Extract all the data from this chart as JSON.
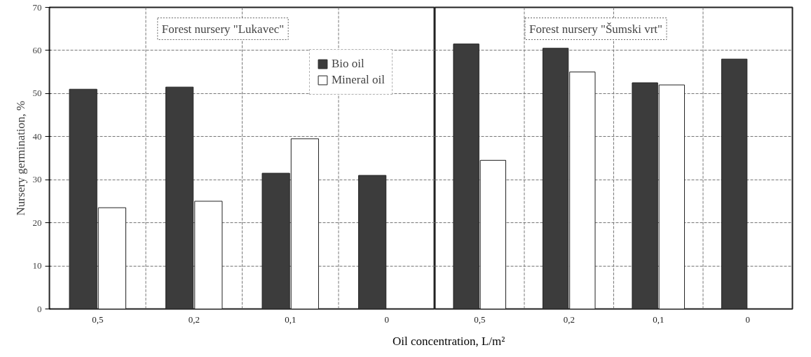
{
  "chart_data": [
    {
      "type": "bar",
      "title": "Forest nursery \"Lukavec\"",
      "ylabel": "Nursery germination, %",
      "xlabel": "Oil concentration, L/m²",
      "categories": [
        "0,5",
        "0,2",
        "0,1",
        "0"
      ],
      "series": [
        {
          "name": "Bio oil",
          "color": "#3c3c3c",
          "values": [
            51,
            51.5,
            31.5,
            31
          ]
        },
        {
          "name": "Mineral oil",
          "color": "#ffffff",
          "values": [
            23.5,
            25,
            39.5,
            null
          ]
        }
      ],
      "ylim": [
        0,
        70
      ],
      "yticks": [
        0,
        10,
        20,
        30,
        40,
        50,
        60,
        70
      ],
      "grid": true,
      "legend": "top right"
    },
    {
      "type": "bar",
      "title": "Forest nursery \"Šumski vrt\"",
      "categories": [
        "0,5",
        "0,2",
        "0,1",
        "0"
      ],
      "series": [
        {
          "color": "#3c3c3c",
          "values": [
            61.5,
            60.5,
            52.5,
            58
          ]
        },
        {
          "color": "#ffffff",
          "values": [
            34.5,
            55,
            52,
            null
          ]
        }
      ],
      "ylim": [
        0,
        70
      ],
      "yticks": [
        0,
        10,
        20,
        30,
        40,
        50,
        60,
        70
      ],
      "grid": true,
      "tick_labels": "x"
    }
  ]
}
